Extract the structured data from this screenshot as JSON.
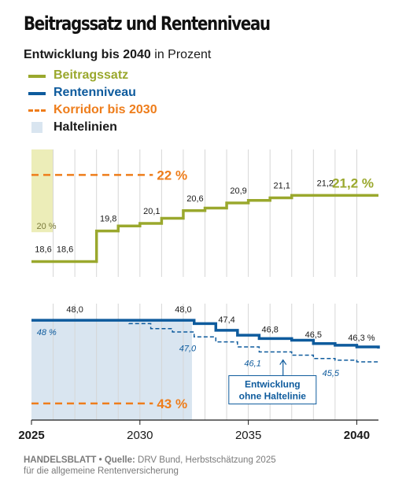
{
  "title": "Beitragssatz und Rentenniveau",
  "subtitle_bold": "Entwicklung bis 2040",
  "subtitle_rest": " in Prozent",
  "legend": [
    {
      "label": "Beitragssatz",
      "color": "#9aa82d",
      "style": "line"
    },
    {
      "label": "Rentenniveau",
      "color": "#0e5b9d",
      "style": "line"
    },
    {
      "label": "Korridor bis 2030",
      "color": "#ee7d1b",
      "style": "dash"
    },
    {
      "label": "Haltelinien",
      "color": "#d9e5f0",
      "style": "box"
    }
  ],
  "footer_source_label": "HANDELSBLATT • Quelle:",
  "footer_source": " DRV Bund, Herbstschätzung 2025",
  "footer_line2": "für die allgemeine Rentenversicherung",
  "chart_data": {
    "type": "line",
    "x_ticks": [
      "2025",
      "2030",
      "2035",
      "2040"
    ],
    "x_tick_values": [
      2025,
      2030,
      2035,
      2040
    ],
    "xlim": [
      2025,
      2041
    ],
    "panels": [
      {
        "name": "Beitragssatz",
        "ylim": [
          18,
          23
        ],
        "series": [
          {
            "name": "Beitragssatz",
            "color": "#9aa82d",
            "step": true,
            "points": [
              [
                2025,
                18.6
              ],
              [
                2026,
                18.6
              ],
              [
                2028,
                19.8
              ],
              [
                2029,
                20.0
              ],
              [
                2030,
                20.1
              ],
              [
                2031,
                20.3
              ],
              [
                2032,
                20.6
              ],
              [
                2033,
                20.7
              ],
              [
                2034,
                20.9
              ],
              [
                2035,
                21.0
              ],
              [
                2036,
                21.1
              ],
              [
                2037,
                21.2
              ],
              [
                2038,
                21.2
              ],
              [
                2039,
                21.2
              ],
              [
                2041,
                21.2
              ]
            ]
          }
        ],
        "point_labels": [
          {
            "x": 2025,
            "text": "18,6"
          },
          {
            "x": 2026,
            "text": "18,6"
          },
          {
            "x": 2028,
            "text": "19,8"
          },
          {
            "x": 2030,
            "text": "20,1"
          },
          {
            "x": 2032,
            "text": "20,6"
          },
          {
            "x": 2034,
            "text": "20,9"
          },
          {
            "x": 2036,
            "text": "21,1"
          },
          {
            "x": 2038,
            "text": "21,2"
          }
        ],
        "end_label": "21,2 %",
        "haltelinie": {
          "x": [
            2025,
            2026
          ],
          "value": 20,
          "label": "20 %"
        },
        "korridor": {
          "x": [
            2025,
            2030.6
          ],
          "value": 22,
          "label": "22 %"
        }
      },
      {
        "name": "Rentenniveau",
        "ylim": [
          42,
          49
        ],
        "series": [
          {
            "name": "Rentenniveau",
            "color": "#0e5b9d",
            "step": true,
            "points": [
              [
                2025,
                48.0
              ],
              [
                2028,
                48.0
              ],
              [
                2031,
                48.0
              ],
              [
                2032,
                48.0
              ],
              [
                2032.5,
                47.8
              ],
              [
                2033.5,
                47.4
              ],
              [
                2034.5,
                47.1
              ],
              [
                2035.5,
                46.9
              ],
              [
                2037,
                46.8
              ],
              [
                2038,
                46.6
              ],
              [
                2039,
                46.5
              ],
              [
                2040,
                46.4
              ],
              [
                2041,
                46.3
              ]
            ]
          },
          {
            "name": "Entwicklung ohne Haltelinie",
            "color": "#0e5b9d",
            "step": true,
            "dashed": true,
            "points": [
              [
                2025,
                48.0
              ],
              [
                2028,
                48.0
              ],
              [
                2029.5,
                47.8
              ],
              [
                2030.5,
                47.5
              ],
              [
                2031.5,
                47.3
              ],
              [
                2032.5,
                47.0
              ],
              [
                2033.5,
                46.7
              ],
              [
                2034.5,
                46.4
              ],
              [
                2035.5,
                46.1
              ],
              [
                2037,
                45.9
              ],
              [
                2038,
                45.7
              ],
              [
                2039,
                45.6
              ],
              [
                2040,
                45.5
              ],
              [
                2041,
                45.4
              ]
            ]
          }
        ],
        "point_labels": [
          {
            "x": 2027,
            "y": 48.0,
            "text": "48,0",
            "style": "solid"
          },
          {
            "x": 2032,
            "y": 48.0,
            "text": "48,0",
            "style": "solid"
          },
          {
            "x": 2034,
            "y": 47.4,
            "text": "47,4",
            "style": "solid"
          },
          {
            "x": 2036,
            "y": 46.8,
            "text": "46,8",
            "style": "solid"
          },
          {
            "x": 2038,
            "y": 46.5,
            "text": "46,5",
            "style": "solid"
          },
          {
            "x": 2040,
            "y": 46.3,
            "text": "46,3 %",
            "style": "solid"
          },
          {
            "x": 2025.7,
            "y": 48.0,
            "text": "48 %",
            "style": "italic"
          },
          {
            "x": 2032.2,
            "y": 47.0,
            "text": "47,0",
            "style": "italic"
          },
          {
            "x": 2035.2,
            "y": 46.1,
            "text": "46,1",
            "style": "italic"
          },
          {
            "x": 2038.8,
            "y": 45.5,
            "text": "45,5",
            "style": "italic"
          }
        ],
        "haltelinie": {
          "x": [
            2025,
            2032
          ],
          "value": 48
        },
        "korridor": {
          "x": [
            2025,
            2030.6
          ],
          "value": 43,
          "label": "43 %"
        },
        "annotation": "Entwicklung ohne Haltelinie"
      }
    ]
  }
}
